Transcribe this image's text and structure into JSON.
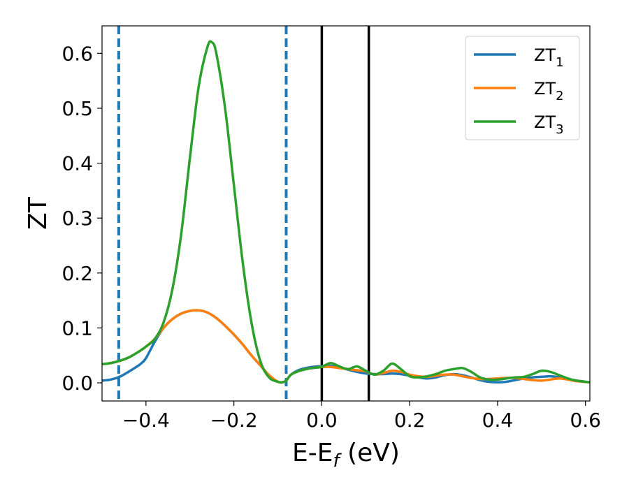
{
  "chart_data": {
    "type": "line",
    "title": "",
    "xlabel": "E-E",
    "xlabel_sub": "f",
    "xlabel_unit": " (eV)",
    "ylabel": "ZT",
    "xlim": [
      -0.5,
      0.61
    ],
    "ylim": [
      -0.033,
      0.65
    ],
    "xticks": [
      -0.4,
      -0.2,
      0.0,
      0.2,
      0.4,
      0.6
    ],
    "xtick_labels": [
      "−0.4",
      "−0.2",
      "0.0",
      "0.2",
      "0.4",
      "0.6"
    ],
    "yticks": [
      0.0,
      0.1,
      0.2,
      0.3,
      0.4,
      0.5,
      0.6
    ],
    "ytick_labels": [
      "0.0",
      "0.1",
      "0.2",
      "0.3",
      "0.4",
      "0.5",
      "0.6"
    ],
    "grid": false,
    "legend_position": "top-right",
    "vlines": [
      {
        "x": -0.462,
        "style": "dashed",
        "color": "#1f77b4"
      },
      {
        "x": -0.081,
        "style": "dashed",
        "color": "#1f77b4"
      },
      {
        "x": 0.0,
        "style": "solid",
        "color": "#000000"
      },
      {
        "x": 0.107,
        "style": "solid",
        "color": "#000000"
      }
    ],
    "series": [
      {
        "name": "ZT",
        "sub": "1",
        "color": "#1f77b4",
        "x": [
          -0.5,
          -0.48,
          -0.46,
          -0.44,
          -0.42,
          -0.41,
          -0.4,
          -0.38,
          -0.36,
          -0.34,
          -0.32,
          -0.3,
          -0.28,
          -0.26,
          -0.24,
          -0.22,
          -0.2,
          -0.18,
          -0.16,
          -0.14,
          -0.12,
          -0.1,
          -0.09,
          -0.081,
          -0.07,
          -0.05,
          -0.03,
          -0.01,
          0.0,
          0.02,
          0.04,
          0.06,
          0.08,
          0.1,
          0.12,
          0.14,
          0.16,
          0.18,
          0.2,
          0.22,
          0.24,
          0.26,
          0.28,
          0.3,
          0.32,
          0.34,
          0.36,
          0.38,
          0.4,
          0.42,
          0.44,
          0.46,
          0.48,
          0.5,
          0.52,
          0.54,
          0.56,
          0.58,
          0.61
        ],
        "y": [
          0.004,
          0.006,
          0.011,
          0.02,
          0.03,
          0.036,
          0.045,
          0.075,
          0.1,
          0.116,
          0.126,
          0.131,
          0.132,
          0.128,
          0.118,
          0.104,
          0.088,
          0.07,
          0.05,
          0.032,
          0.014,
          0.002,
          0.001,
          0.004,
          0.015,
          0.024,
          0.028,
          0.03,
          0.03,
          0.031,
          0.028,
          0.024,
          0.02,
          0.017,
          0.016,
          0.016,
          0.017,
          0.016,
          0.013,
          0.01,
          0.008,
          0.01,
          0.014,
          0.016,
          0.014,
          0.01,
          0.005,
          0.002,
          0.001,
          0.002,
          0.005,
          0.008,
          0.01,
          0.011,
          0.012,
          0.01,
          0.007,
          0.004,
          0.001
        ]
      },
      {
        "name": "ZT",
        "sub": "2",
        "color": "#ff7f0e",
        "x": [
          -0.5,
          -0.48,
          -0.46,
          -0.44,
          -0.42,
          -0.41,
          -0.4,
          -0.38,
          -0.36,
          -0.34,
          -0.32,
          -0.3,
          -0.28,
          -0.26,
          -0.24,
          -0.22,
          -0.2,
          -0.18,
          -0.16,
          -0.14,
          -0.12,
          -0.1,
          -0.09,
          -0.081,
          -0.07,
          -0.05,
          -0.03,
          -0.01,
          0.0,
          0.02,
          0.04,
          0.06,
          0.08,
          0.1,
          0.12,
          0.14,
          0.16,
          0.18,
          0.2,
          0.22,
          0.24,
          0.26,
          0.28,
          0.3,
          0.32,
          0.34,
          0.36,
          0.38,
          0.4,
          0.42,
          0.44,
          0.46,
          0.48,
          0.5,
          0.52,
          0.54,
          0.56,
          0.58,
          0.61
        ],
        "y": [
          0.034,
          0.036,
          0.04,
          0.046,
          0.055,
          0.06,
          0.066,
          0.08,
          0.1,
          0.116,
          0.126,
          0.131,
          0.132,
          0.128,
          0.118,
          0.104,
          0.088,
          0.07,
          0.05,
          0.032,
          0.014,
          0.002,
          0.001,
          0.004,
          0.015,
          0.022,
          0.026,
          0.028,
          0.029,
          0.029,
          0.027,
          0.025,
          0.023,
          0.021,
          0.015,
          0.018,
          0.022,
          0.02,
          0.015,
          0.012,
          0.011,
          0.013,
          0.015,
          0.015,
          0.012,
          0.009,
          0.007,
          0.007,
          0.008,
          0.009,
          0.009,
          0.007,
          0.005,
          0.004,
          0.006,
          0.008,
          0.006,
          0.003,
          0.001
        ]
      },
      {
        "name": "ZT",
        "sub": "3",
        "color": "#2ca02c",
        "x": [
          -0.5,
          -0.48,
          -0.46,
          -0.44,
          -0.42,
          -0.4,
          -0.38,
          -0.36,
          -0.34,
          -0.32,
          -0.3,
          -0.28,
          -0.26,
          -0.25,
          -0.24,
          -0.22,
          -0.2,
          -0.18,
          -0.16,
          -0.14,
          -0.12,
          -0.1,
          -0.09,
          -0.081,
          -0.07,
          -0.05,
          -0.03,
          -0.01,
          0.0,
          0.02,
          0.04,
          0.06,
          0.08,
          0.1,
          0.12,
          0.14,
          0.16,
          0.18,
          0.2,
          0.22,
          0.24,
          0.26,
          0.28,
          0.3,
          0.32,
          0.34,
          0.36,
          0.38,
          0.4,
          0.42,
          0.44,
          0.46,
          0.48,
          0.5,
          0.52,
          0.54,
          0.56,
          0.58,
          0.61
        ],
        "y": [
          0.034,
          0.036,
          0.04,
          0.046,
          0.055,
          0.066,
          0.08,
          0.11,
          0.17,
          0.27,
          0.41,
          0.54,
          0.612,
          0.62,
          0.6,
          0.5,
          0.36,
          0.22,
          0.11,
          0.04,
          0.01,
          0.002,
          0.001,
          0.004,
          0.015,
          0.022,
          0.026,
          0.028,
          0.029,
          0.036,
          0.03,
          0.025,
          0.03,
          0.022,
          0.015,
          0.022,
          0.035,
          0.025,
          0.012,
          0.01,
          0.012,
          0.016,
          0.022,
          0.025,
          0.027,
          0.02,
          0.01,
          0.006,
          0.006,
          0.008,
          0.01,
          0.011,
          0.016,
          0.022,
          0.02,
          0.014,
          0.008,
          0.004,
          0.001
        ]
      }
    ]
  }
}
